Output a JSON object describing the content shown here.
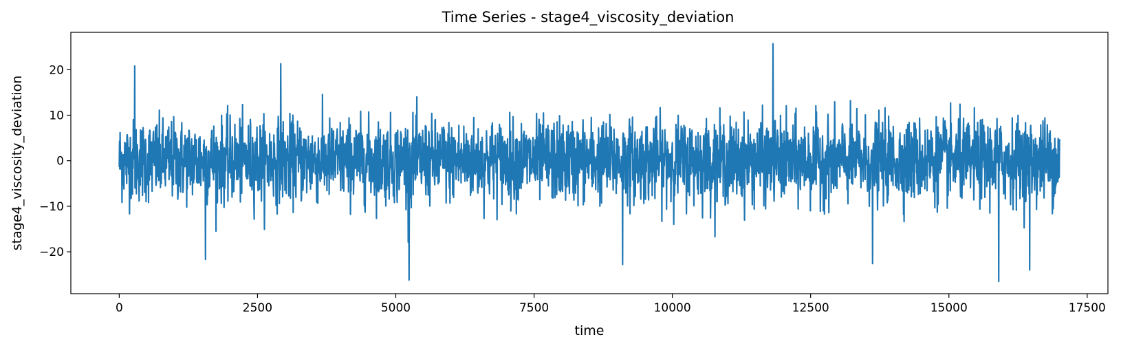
{
  "chart_data": {
    "type": "line",
    "title": "Time Series - stage4_viscosity_deviation",
    "xlabel": "time",
    "ylabel": "stage4_viscosity_deviation",
    "xlim": [
      -875,
      17875
    ],
    "ylim": [
      -29.2,
      28.2
    ],
    "x_ticks": [
      0,
      2500,
      5000,
      7500,
      10000,
      12500,
      15000,
      17500
    ],
    "y_ticks": [
      -20,
      -10,
      0,
      10,
      20
    ],
    "grid": false,
    "legend": "none",
    "series": [
      {
        "color": "#1f77b4",
        "x_start": 0,
        "x_end": 17000,
        "mean": 0,
        "typical_range": [
          -10,
          10
        ],
        "peaks": [
          {
            "x": 280,
            "y": 20.8
          },
          {
            "x": 2920,
            "y": 21.3
          },
          {
            "x": 11820,
            "y": 25.7
          },
          {
            "x": 1560,
            "y": -21.7
          },
          {
            "x": 5240,
            "y": -26.2
          },
          {
            "x": 9100,
            "y": -22.8
          },
          {
            "x": 13620,
            "y": -22.6
          },
          {
            "x": 15900,
            "y": -26.5
          },
          {
            "x": 16460,
            "y": -24.0
          }
        ]
      }
    ]
  }
}
